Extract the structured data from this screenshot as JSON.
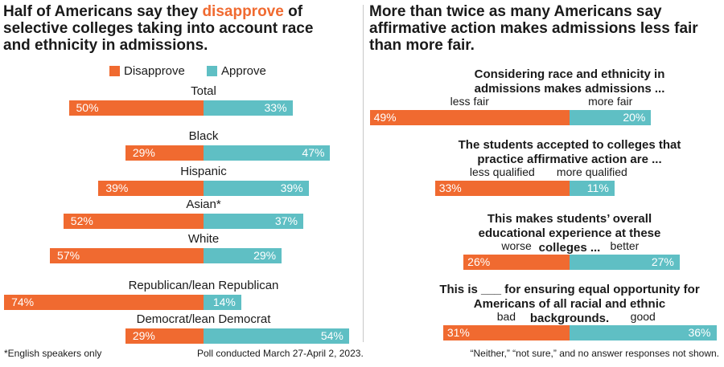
{
  "left_title": {
    "pre": "Half of Americans say they ",
    "highlight": "disapprove",
    "post": " of selective colleges taking into account race and ethnicity in admissions."
  },
  "right_title": "More than twice as many Americans say affirmative action makes admissions less fair than more fair.",
  "colors": {
    "disapprove": "#f06a30",
    "approve": "#5fbfc4"
  },
  "legend": {
    "disapprove": "Disapprove",
    "approve": "Approve"
  },
  "chart_data": [
    {
      "type": "bar",
      "orientation": "diverging-horizontal",
      "title": "Half of Americans say they disapprove of selective colleges taking into account race and ethnicity in admissions.",
      "series_names": [
        "Disapprove",
        "Approve"
      ],
      "groups": [
        {
          "label": "Total",
          "disapprove": 50,
          "approve": 33
        },
        {
          "label": "Black",
          "disapprove": 29,
          "approve": 47
        },
        {
          "label": "Hispanic",
          "disapprove": 39,
          "approve": 39
        },
        {
          "label": "Asian*",
          "disapprove": 52,
          "approve": 37
        },
        {
          "label": "White",
          "disapprove": 57,
          "approve": 29
        },
        {
          "label": "Republican/lean Republican",
          "disapprove": 74,
          "approve": 14
        },
        {
          "label": "Democrat/lean Democrat",
          "disapprove": 29,
          "approve": 54
        }
      ]
    },
    {
      "type": "bar",
      "orientation": "diverging-horizontal",
      "title": "More than twice as many Americans say affirmative action makes admissions less fair than more fair.",
      "questions": [
        {
          "question": "Considering race and ethnicity in admissions makes admissions ...",
          "left_label": "less fair",
          "left_value": 49,
          "right_label": "more fair",
          "right_value": 20
        },
        {
          "question": "The students accepted to colleges that practice affirmative action are ...",
          "left_label": "less qualified",
          "left_value": 33,
          "right_label": "more qualified",
          "right_value": 11
        },
        {
          "question": "This makes students’ overall educational experience at these colleges ...",
          "left_label": "worse",
          "left_value": 26,
          "right_label": "better",
          "right_value": 27
        },
        {
          "question": "This is ___ for ensuring equal opportunity for Americans of all racial and ethnic backgrounds.",
          "left_label": "bad",
          "left_value": 31,
          "right_label": "good",
          "right_value": 36
        }
      ]
    }
  ],
  "footnotes": {
    "left": "*English speakers only",
    "center": "Poll conducted March 27-April 2, 2023.",
    "right": "“Neither,” “not sure,” and no answer responses not shown."
  }
}
